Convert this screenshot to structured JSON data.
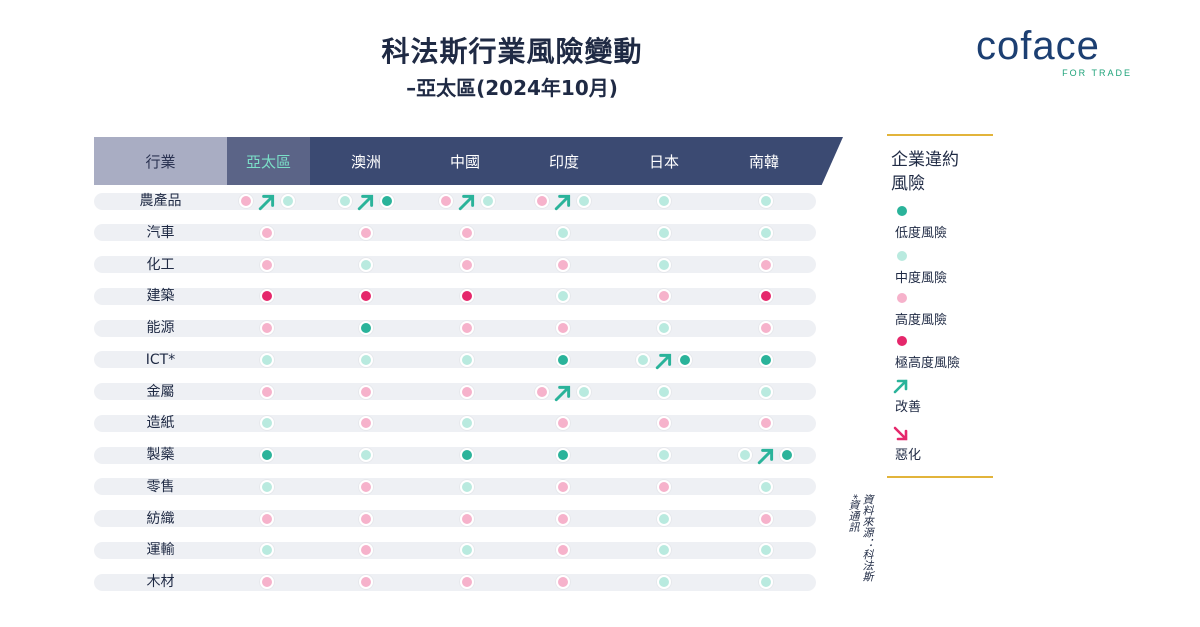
{
  "header": {
    "title": "科法斯行業風險變動",
    "subtitle": "–亞太區(2024年10月)"
  },
  "logo": {
    "name": "coface",
    "tagline": "FOR TRADE"
  },
  "table": {
    "sector_header": "行業",
    "columns": [
      "亞太區",
      "澳洲",
      "中國",
      "印度",
      "日本",
      "南韓"
    ],
    "rows": [
      {
        "sector": "農產品",
        "cells": [
          {
            "from": "high",
            "to": "mid",
            "arrow": "up"
          },
          {
            "from": "mid",
            "to": "low",
            "arrow": "up"
          },
          {
            "from": "high",
            "to": "mid",
            "arrow": "up"
          },
          {
            "from": "high",
            "to": "mid",
            "arrow": "up"
          },
          {
            "level": "mid"
          },
          {
            "level": "mid"
          }
        ]
      },
      {
        "sector": "汽車",
        "cells": [
          {
            "level": "high"
          },
          {
            "level": "high"
          },
          {
            "level": "high"
          },
          {
            "level": "mid"
          },
          {
            "level": "mid"
          },
          {
            "level": "mid"
          }
        ]
      },
      {
        "sector": "化工",
        "cells": [
          {
            "level": "high"
          },
          {
            "level": "mid"
          },
          {
            "level": "high"
          },
          {
            "level": "high"
          },
          {
            "level": "mid"
          },
          {
            "level": "high"
          }
        ]
      },
      {
        "sector": "建築",
        "cells": [
          {
            "level": "vhigh"
          },
          {
            "level": "vhigh"
          },
          {
            "level": "vhigh"
          },
          {
            "level": "mid"
          },
          {
            "level": "high"
          },
          {
            "level": "vhigh"
          }
        ]
      },
      {
        "sector": "能源",
        "cells": [
          {
            "level": "high"
          },
          {
            "level": "low"
          },
          {
            "level": "high"
          },
          {
            "level": "high"
          },
          {
            "level": "mid"
          },
          {
            "level": "high"
          }
        ]
      },
      {
        "sector": "ICT*",
        "cells": [
          {
            "level": "mid"
          },
          {
            "level": "mid"
          },
          {
            "level": "mid"
          },
          {
            "level": "low"
          },
          {
            "from": "mid",
            "to": "low",
            "arrow": "up"
          },
          {
            "level": "low"
          }
        ]
      },
      {
        "sector": "金屬",
        "cells": [
          {
            "level": "high"
          },
          {
            "level": "high"
          },
          {
            "level": "high"
          },
          {
            "from": "high",
            "to": "mid",
            "arrow": "up"
          },
          {
            "level": "mid"
          },
          {
            "level": "mid"
          }
        ]
      },
      {
        "sector": "造紙",
        "cells": [
          {
            "level": "mid"
          },
          {
            "level": "high"
          },
          {
            "level": "mid"
          },
          {
            "level": "high"
          },
          {
            "level": "high"
          },
          {
            "level": "high"
          }
        ]
      },
      {
        "sector": "製藥",
        "cells": [
          {
            "level": "low"
          },
          {
            "level": "mid"
          },
          {
            "level": "low"
          },
          {
            "level": "low"
          },
          {
            "level": "mid"
          },
          {
            "from": "mid",
            "to": "low",
            "arrow": "up"
          }
        ]
      },
      {
        "sector": "零售",
        "cells": [
          {
            "level": "mid"
          },
          {
            "level": "high"
          },
          {
            "level": "mid"
          },
          {
            "level": "high"
          },
          {
            "level": "high"
          },
          {
            "level": "mid"
          }
        ]
      },
      {
        "sector": "紡織",
        "cells": [
          {
            "level": "high"
          },
          {
            "level": "high"
          },
          {
            "level": "high"
          },
          {
            "level": "high"
          },
          {
            "level": "mid"
          },
          {
            "level": "high"
          }
        ]
      },
      {
        "sector": "運輸",
        "cells": [
          {
            "level": "mid"
          },
          {
            "level": "high"
          },
          {
            "level": "mid"
          },
          {
            "level": "high"
          },
          {
            "level": "mid"
          },
          {
            "level": "mid"
          }
        ]
      },
      {
        "sector": "木材",
        "cells": [
          {
            "level": "high"
          },
          {
            "level": "high"
          },
          {
            "level": "high"
          },
          {
            "level": "high"
          },
          {
            "level": "mid"
          },
          {
            "level": "mid"
          }
        ]
      }
    ]
  },
  "legend": {
    "title_line1": "企業違約",
    "title_line2": "風險",
    "low": "低度風險",
    "mid": "中度風險",
    "high": "高度風險",
    "vhigh": "極高度風險",
    "improve": "改善",
    "worsen": "惡化"
  },
  "colors": {
    "low": "#2ab39a",
    "mid": "#b9eadf",
    "high": "#f6b2cb",
    "vhigh": "#e5276b",
    "improve_arrow": "#2ab39a",
    "worsen_arrow": "#e5276b",
    "header_dark": "#3b4a72",
    "legend_rule": "#e2b43b"
  },
  "source_note": {
    "line1": "資料來源：科法斯",
    "line2": "*資通訊"
  }
}
